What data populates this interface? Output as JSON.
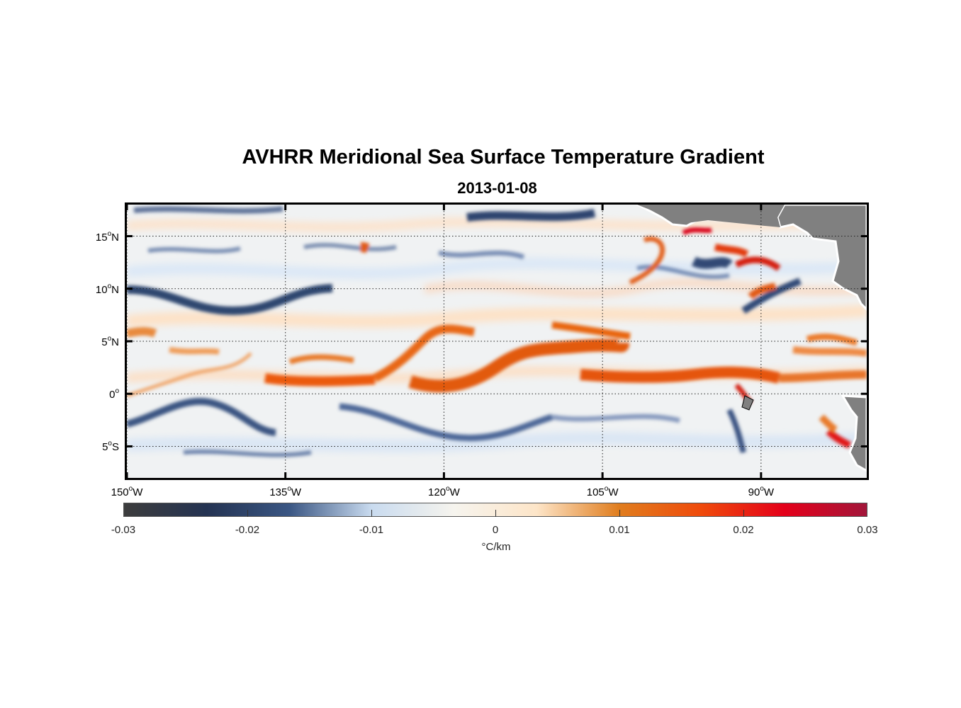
{
  "title": "AVHRR Meridional Sea Surface Temperature Gradient",
  "subtitle": "2013-01-08",
  "map": {
    "lon_range": [
      -150,
      -80
    ],
    "lat_range": [
      -8,
      18
    ],
    "lat_ticks": [
      {
        "value": 15,
        "num": "15",
        "hemi": "N"
      },
      {
        "value": 10,
        "num": "10",
        "hemi": "N"
      },
      {
        "value": 5,
        "num": "5",
        "hemi": "N"
      },
      {
        "value": 0,
        "num": "0",
        "hemi": ""
      },
      {
        "value": -5,
        "num": "5",
        "hemi": "S"
      }
    ],
    "lon_ticks": [
      {
        "value": -150,
        "num": "150",
        "hemi": "W"
      },
      {
        "value": -135,
        "num": "135",
        "hemi": "W"
      },
      {
        "value": -120,
        "num": "120",
        "hemi": "W"
      },
      {
        "value": -105,
        "num": "105",
        "hemi": "W"
      },
      {
        "value": -90,
        "num": "90",
        "hemi": "W"
      }
    ],
    "grid": "dotted",
    "land_color": "#808080",
    "background_color": "#f0f2f3"
  },
  "colorbar": {
    "range": [
      -0.03,
      0.03
    ],
    "ticks": [
      "-0.03",
      "-0.02",
      "-0.01",
      "0",
      "0.01",
      "0.02",
      "0.03"
    ],
    "units": "°C/km",
    "stops": [
      "#3d3d3d",
      "#243352",
      "#3a5683",
      "#c9dbef",
      "#f6f4ee",
      "#fde5c8",
      "#e07d1e",
      "#ef4a0b",
      "#e4001a",
      "#a2163a"
    ]
  }
}
